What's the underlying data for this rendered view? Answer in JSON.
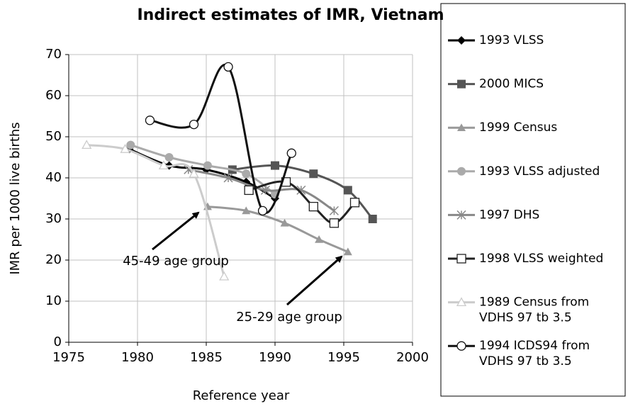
{
  "chart_data": {
    "type": "line",
    "title": "Indirect estimates of IMR, Vietnam",
    "xlabel": "Reference year",
    "ylabel": "IMR per 1000 live births",
    "xlim": [
      1975,
      2000
    ],
    "xticks": [
      1975,
      1980,
      1985,
      1990,
      1995,
      2000
    ],
    "ylim": [
      0,
      70
    ],
    "yticks": [
      0,
      10,
      20,
      30,
      40,
      50,
      60,
      70
    ],
    "grid": true,
    "legend": "right",
    "smooth": true,
    "series": [
      {
        "name": "1993 VLSS",
        "color": "#000000",
        "marker": "diamond",
        "x": [
          1979.4,
          1982.3,
          1985,
          1987.9,
          1990
        ],
        "values": [
          47,
          43,
          42,
          39,
          35
        ]
      },
      {
        "name": "2000 MICS",
        "color": "#555555",
        "marker": "square",
        "x": [
          1986.9,
          1990,
          1992.8,
          1995.3,
          1997.1
        ],
        "values": [
          42,
          43,
          41,
          37,
          30
        ]
      },
      {
        "name": "1999 Census",
        "color": "#999999",
        "marker": "triangle",
        "x": [
          1985.1,
          1987.9,
          1990.7,
          1993.2,
          1995.3
        ],
        "values": [
          33,
          32,
          29,
          25,
          22
        ]
      },
      {
        "name": "1993 VLSS adjusted",
        "color": "#aaaaaa",
        "marker": "circle",
        "x": [
          1979.5,
          1982.3,
          1985.1,
          1987.9,
          1990
        ],
        "values": [
          48,
          45,
          43,
          41,
          36
        ]
      },
      {
        "name": "1997 DHS",
        "color": "#888888",
        "marker": "asterisk",
        "x": [
          1983.7,
          1986.6,
          1989.3,
          1991.9,
          1994.3
        ],
        "values": [
          42,
          40,
          37,
          37,
          32
        ]
      },
      {
        "name": "1998 VLSS weighted",
        "color": "#222222",
        "marker": "open-square",
        "x": [
          1988.1,
          1990.8,
          1992.8,
          1994.3,
          1995.8
        ],
        "values": [
          37,
          39,
          33,
          29,
          34
        ]
      },
      {
        "name": "1989 Census from VDHS 97 tb 3.5",
        "color": "#cccccc",
        "marker": "open-triangle",
        "x": [
          1976.3,
          1979.1,
          1981.9,
          1984.1,
          1986.3
        ],
        "values": [
          48,
          47,
          43,
          41,
          16
        ]
      },
      {
        "name": "1994 ICDS94 from VDHS 97 tb 3.5",
        "color": "#111111",
        "marker": "open-circle",
        "x": [
          1980.9,
          1984.1,
          1986.6,
          1989.1,
          1991.2
        ],
        "values": [
          54,
          53,
          67,
          32,
          46
        ]
      }
    ],
    "annotations": [
      "45-49 age group",
      "25-29 age group"
    ]
  }
}
